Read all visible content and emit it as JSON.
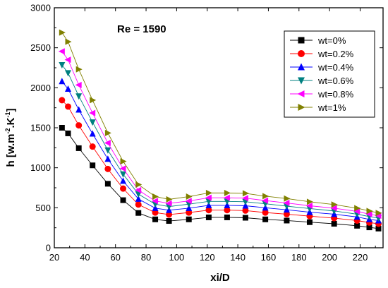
{
  "chart_data": {
    "type": "line",
    "annotation": "Re = 1590",
    "xlabel": "xi/D",
    "ylabel_main": "h [w.m",
    "ylabel_sup1": "-2",
    "ylabel_mid": ".K",
    "ylabel_sup2": "-1",
    "ylabel_end": "]",
    "xlim": [
      20,
      235
    ],
    "ylim": [
      0,
      3000
    ],
    "x_ticks": [
      20,
      40,
      60,
      80,
      100,
      120,
      140,
      160,
      180,
      200,
      220
    ],
    "y_ticks": [
      0,
      500,
      1000,
      1500,
      2000,
      2500,
      3000
    ],
    "x_tick_labels": [
      "20",
      "40",
      "60",
      "80",
      "100",
      "120",
      "140",
      "160",
      "180",
      "200",
      "220"
    ],
    "y_tick_labels": [
      "0",
      "500",
      "1000",
      "1500",
      "2000",
      "2500",
      "3000"
    ],
    "grid": false,
    "legend_position": "top-right",
    "x": [
      25,
      29,
      36,
      45,
      55,
      65,
      75,
      86,
      95,
      108,
      121,
      133,
      145,
      158,
      172,
      187,
      203,
      218,
      226,
      232
    ],
    "series": [
      {
        "name": "wt=0%",
        "color": "#000000",
        "marker": "square",
        "values": [
          1500,
          1430,
          1245,
          1030,
          800,
          595,
          435,
          355,
          335,
          355,
          380,
          380,
          375,
          355,
          340,
          320,
          300,
          275,
          255,
          240
        ]
      },
      {
        "name": "wt=0.2%",
        "color": "#ff0000",
        "marker": "circle",
        "values": [
          1845,
          1765,
          1530,
          1265,
          985,
          740,
          540,
          440,
          415,
          440,
          470,
          470,
          465,
          440,
          420,
          395,
          370,
          340,
          315,
          300
        ]
      },
      {
        "name": "wt=0.4%",
        "color": "#0000ff",
        "marker": "triangle-up",
        "values": [
          2080,
          1985,
          1725,
          1425,
          1110,
          835,
          610,
          495,
          470,
          495,
          530,
          530,
          525,
          500,
          475,
          445,
          420,
          385,
          355,
          340
        ]
      },
      {
        "name": "wt=0.6%",
        "color": "#008080",
        "marker": "triangle-down",
        "values": [
          2285,
          2185,
          1895,
          1570,
          1220,
          920,
          670,
          545,
          515,
          545,
          580,
          580,
          575,
          550,
          520,
          490,
          460,
          420,
          390,
          370
        ]
      },
      {
        "name": "wt=0.8%",
        "color": "#ff00ff",
        "marker": "triangle-left",
        "values": [
          2455,
          2350,
          2035,
          1685,
          1310,
          990,
          720,
          585,
          555,
          585,
          625,
          625,
          620,
          590,
          560,
          525,
          495,
          455,
          420,
          400
        ]
      },
      {
        "name": "wt=1%",
        "color": "#808000",
        "marker": "triangle-right",
        "values": [
          2690,
          2575,
          2230,
          1845,
          1435,
          1080,
          790,
          640,
          605,
          640,
          685,
          685,
          680,
          645,
          615,
          575,
          540,
          495,
          460,
          435
        ]
      }
    ]
  }
}
